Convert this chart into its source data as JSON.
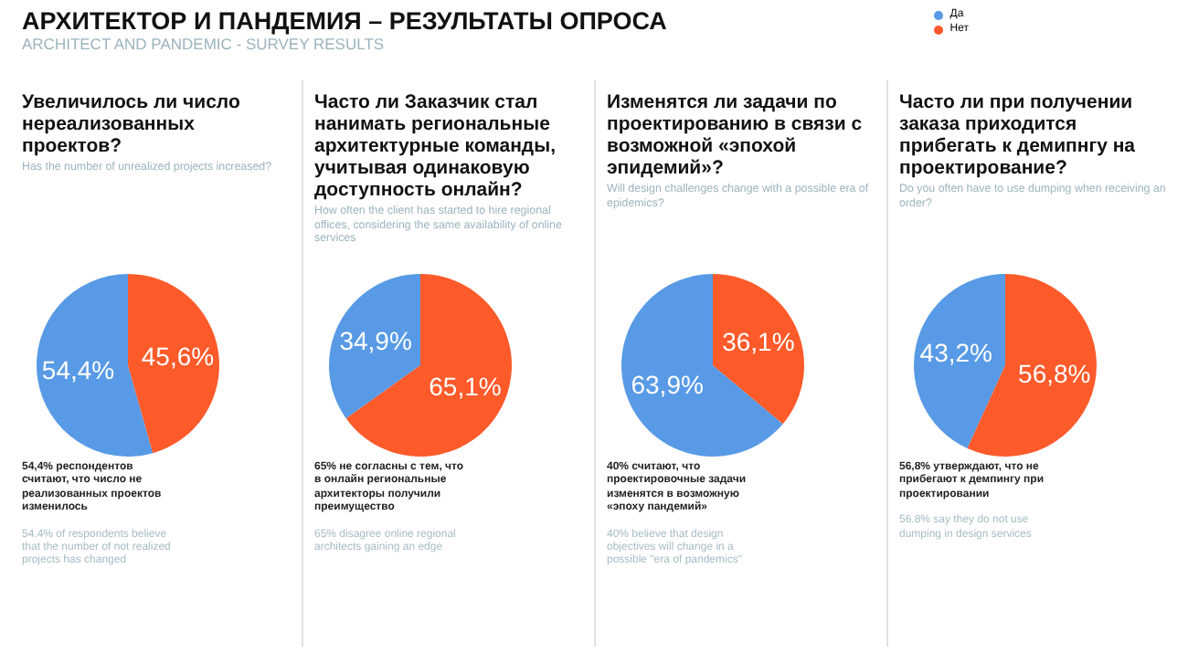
{
  "chart_data": [
    {
      "type": "other",
      "title": "АРХИТЕКТОР И ПАНДЕМИЯ – РЕЗУЛЬТАТЫ ОПРОСА",
      "subtitle": "ARCHITECT AND PANDEMIC - SURVEY RESULTS"
    },
    {
      "type": "pie",
      "title": "Увеличилось ли число нереализованных проектов?",
      "subtitle": "Has the number of unrealized projects increased?",
      "categories": [
        "Да",
        "Нет"
      ],
      "values": [
        54.4,
        45.6
      ],
      "value_labels": [
        "54,4%",
        "45,6%"
      ],
      "colors": [
        "#589ae5",
        "#fe5a2a"
      ],
      "legend": "top right",
      "annotations": [
        "54,4% респондентов считают, что число не реализованных проектов изменилось",
        "54.4% of respondents believe that the number of not realized projects has changed"
      ]
    },
    {
      "type": "pie",
      "title": "Часто ли Заказчик стал нанимать региональные архитектурные команды, учитывая одинаковую доступность онлайн?",
      "subtitle": "How often the client has started to hire regional offices, considering the same availability of online services",
      "categories": [
        null,
        null
      ],
      "values": [
        34.9,
        65.1
      ],
      "value_labels": [
        "34,9%",
        "65,1%"
      ],
      "colors": [
        "#589ae5",
        "#fe5a2a"
      ],
      "annotations": [
        "65% не согласны с тем, что в онлайн региональные архитекторы получили преимущество",
        "65% disagree online regional architects gaining an edge"
      ]
    },
    {
      "type": "pie",
      "title": "Изменятся ли задачи по проектированию в связи с возможной «эпохой эпидемий»?",
      "subtitle": "Will design challenges change with a possible era of epidemics?",
      "categories": [
        null,
        null
      ],
      "values": [
        63.9,
        36.1
      ],
      "value_labels": [
        "63,9%",
        "36,1%"
      ],
      "colors": [
        "#589ae5",
        "#fe5a2a"
      ],
      "annotations": [
        "40% считают, что проектировочные задачи изменятся в возможную «эпоху пандемий»",
        "40% believe that design objectives will change in a possible \"era of pandemics\""
      ]
    },
    {
      "type": "pie",
      "title": "Часто ли при получении заказа приходится прибегать к демипнгу на проектирование?",
      "subtitle": "Do you often have to use dumping when receiving an order?",
      "categories": [
        null,
        null
      ],
      "values": [
        43.2,
        56.8
      ],
      "value_labels": [
        "43,2%",
        "56,8%"
      ],
      "colors": [
        "#589ae5",
        "#fe5a2a"
      ],
      "annotations": [
        "56,8% утверждают, что не прибегают к демпингу при проектировании",
        "56.8% say they do not use dumping in design services"
      ]
    }
  ]
}
